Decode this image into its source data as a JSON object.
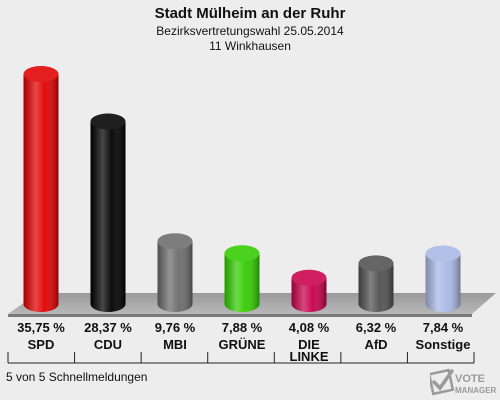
{
  "header": {
    "title": "Stadt Mülheim an der Ruhr",
    "subtitle": "Bezirksvertretungswahl 25.05.2014",
    "district": "11 Winkhausen"
  },
  "footer": {
    "reporting_status": "5 von 5 Schnellmeldungen"
  },
  "watermark": {
    "line1": "VOTE",
    "line2": "MANAGER"
  },
  "chart_data": {
    "type": "bar",
    "title": "Stadt Mülheim an der Ruhr",
    "subtitle": "Bezirksvertretungswahl 25.05.2014 — 11 Winkhausen",
    "categories": [
      "SPD",
      "CDU",
      "MBI",
      "GRÜNE",
      "DIE LINKE",
      "AfD",
      "Sonstige"
    ],
    "category_lines": [
      [
        "SPD"
      ],
      [
        "CDU"
      ],
      [
        "MBI"
      ],
      [
        "GRÜNE"
      ],
      [
        "DIE",
        "LINKE"
      ],
      [
        "AfD"
      ],
      [
        "Sonstige"
      ]
    ],
    "values": [
      35.75,
      28.37,
      9.76,
      7.88,
      4.08,
      6.32,
      7.84
    ],
    "value_labels": [
      "35,75 %",
      "28,37 %",
      "9,76 %",
      "7,88 %",
      "4,08 %",
      "6,32 %",
      "7,84 %"
    ],
    "colors": [
      "#e00000",
      "#000000",
      "#6b6b6b",
      "#33cc00",
      "#c8004a",
      "#505050",
      "#a9b8e6"
    ],
    "unit": "%",
    "ylim": [
      0,
      35.75
    ],
    "grid": false,
    "legend": "none"
  }
}
